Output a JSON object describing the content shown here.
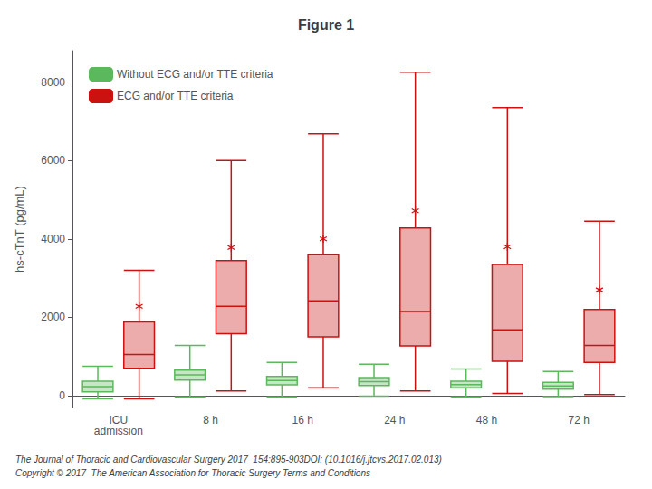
{
  "chart_data": {
    "type": "boxplot",
    "title": "Figure 1",
    "ylabel": "hs-cTnT (pg/mL)",
    "categories": [
      "ICU\nadmission",
      "8 h",
      "16 h",
      "24 h",
      "48 h",
      "72 h"
    ],
    "ylim": [
      -300,
      8800
    ],
    "yticks": [
      0,
      2000,
      4000,
      6000,
      8000
    ],
    "grid": false,
    "legend": "upper left",
    "series": [
      {
        "name": "Without ECG and/or TTE criteria",
        "color": "#5cb85c",
        "boxes": [
          {
            "whislo": -80,
            "q1": 100,
            "med": 230,
            "q3": 370,
            "whishi": 750
          },
          {
            "whislo": -30,
            "q1": 400,
            "med": 530,
            "q3": 650,
            "whishi": 1280
          },
          {
            "whislo": -30,
            "q1": 280,
            "med": 390,
            "q3": 490,
            "whishi": 850
          },
          {
            "whislo": -10,
            "q1": 260,
            "med": 360,
            "q3": 460,
            "whishi": 800
          },
          {
            "whislo": -30,
            "q1": 200,
            "med": 285,
            "q3": 370,
            "whishi": 680
          },
          {
            "whislo": -20,
            "q1": 170,
            "med": 250,
            "q3": 340,
            "whishi": 620
          }
        ]
      },
      {
        "name": "ECG and/or TTE criteria",
        "color": "#cc1111",
        "boxes": [
          {
            "whislo": -80,
            "q1": 700,
            "med": 1050,
            "q3": 1880,
            "whishi": 3200
          },
          {
            "whislo": 120,
            "q1": 1580,
            "med": 2280,
            "q3": 3450,
            "whishi": 6000
          },
          {
            "whislo": 200,
            "q1": 1500,
            "med": 2420,
            "q3": 3600,
            "whishi": 6680
          },
          {
            "whislo": 120,
            "q1": 1270,
            "med": 2150,
            "q3": 4280,
            "whishi": 8250
          },
          {
            "whislo": 60,
            "q1": 880,
            "med": 1680,
            "q3": 3350,
            "whishi": 7350
          },
          {
            "whislo": 30,
            "q1": 850,
            "med": 1280,
            "q3": 2200,
            "whishi": 4450
          }
        ],
        "outliers": [
          [
            0,
            2280
          ],
          [
            1,
            3780
          ],
          [
            2,
            4000
          ],
          [
            3,
            4720
          ],
          [
            4,
            3800
          ],
          [
            5,
            2700
          ]
        ],
        "marker": "asterisk"
      }
    ],
    "footer": [
      "The Journal of Thoracic and Cardiovascular Surgery 2017  154:895-903DOI: (10.1016/j.jtcvs.2017.02.013)",
      "Copyright © 2017  The American Association for Thoracic Surgery Terms and Conditions"
    ]
  }
}
